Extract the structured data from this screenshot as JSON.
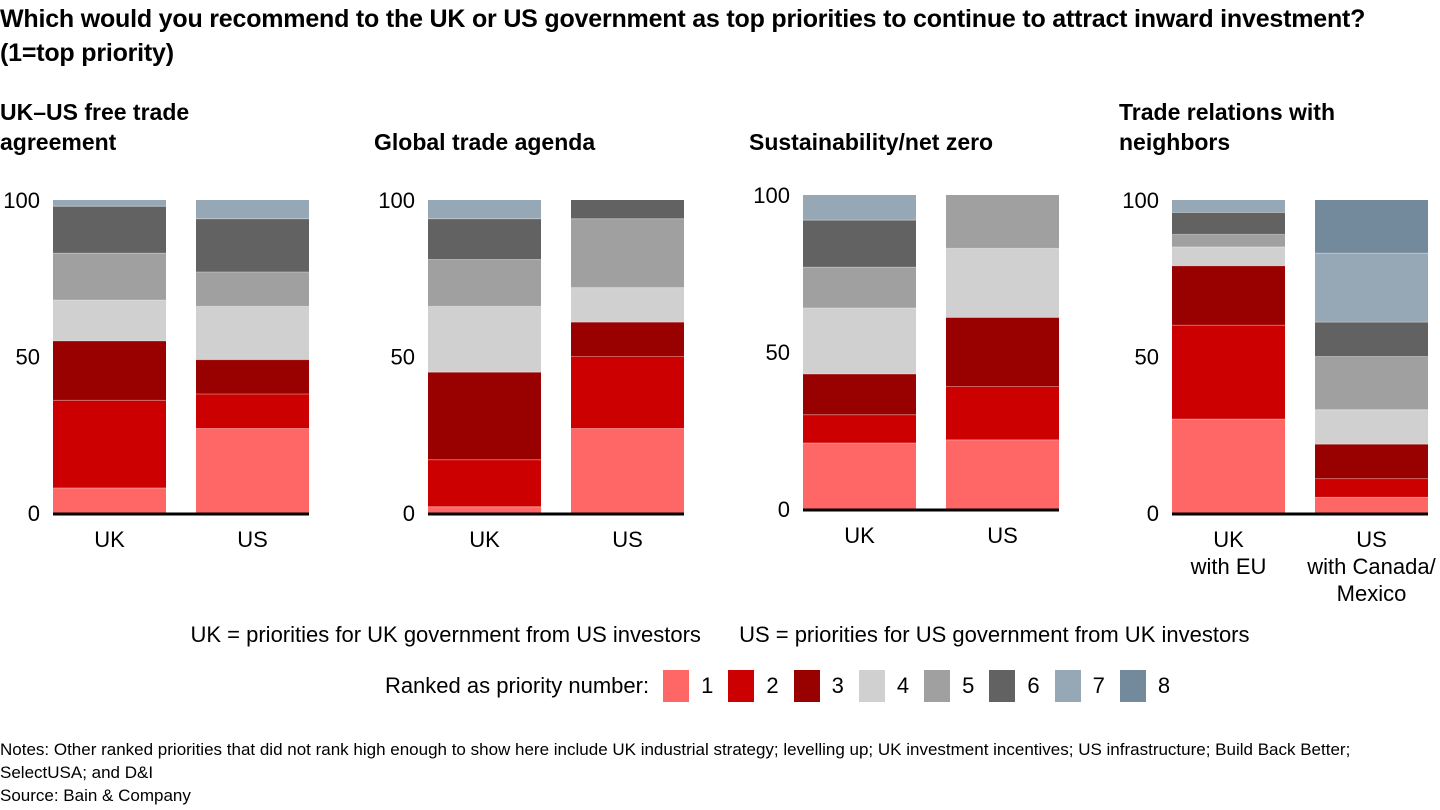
{
  "title": "Which would you recommend to the UK or US government as top priorities to continue to attract inward investment? (1=top priority)",
  "legend": {
    "definitions": [
      "UK = priorities for UK government from US investors",
      "US = priorities for US government from UK investors"
    ],
    "ranked_label": "Ranked as priority number:",
    "items": [
      {
        "label": "1",
        "color": "#FF6666"
      },
      {
        "label": "2",
        "color": "#CC0000"
      },
      {
        "label": "3",
        "color": "#990000"
      },
      {
        "label": "4",
        "color": "#D0D0D0"
      },
      {
        "label": "5",
        "color": "#A0A0A0"
      },
      {
        "label": "6",
        "color": "#626262"
      },
      {
        "label": "7",
        "color": "#96A8B6"
      },
      {
        "label": "8",
        "color": "#738A9D"
      }
    ]
  },
  "notes": "Notes: Other ranked priorities that did not rank high enough to show here include UK industrial strategy; levelling up; UK investment incentives; US infrastructure; Build Back Better; SelectUSA; and D&I",
  "source": "Source: Bain & Company",
  "chart_data": [
    {
      "type": "bar",
      "stacked": true,
      "title": "UK–US free trade agreement",
      "title_lines": [
        "UK–US free trade",
        "agreement"
      ],
      "categories": [
        [
          "UK"
        ],
        [
          "US"
        ]
      ],
      "ylim": [
        0,
        100
      ],
      "yticks": [
        0,
        50,
        100
      ],
      "series": [
        {
          "name": "1",
          "values": [
            8,
            27
          ]
        },
        {
          "name": "2",
          "values": [
            28,
            11
          ]
        },
        {
          "name": "3",
          "values": [
            19,
            11
          ]
        },
        {
          "name": "4",
          "values": [
            13,
            17
          ]
        },
        {
          "name": "5",
          "values": [
            15,
            11
          ]
        },
        {
          "name": "6",
          "values": [
            15,
            17
          ]
        },
        {
          "name": "7",
          "values": [
            2,
            6
          ]
        },
        {
          "name": "8",
          "values": [
            0,
            0
          ]
        }
      ]
    },
    {
      "type": "bar",
      "stacked": true,
      "title": "Global trade agenda",
      "title_lines": [
        "",
        "Global trade agenda"
      ],
      "categories": [
        [
          "UK"
        ],
        [
          "US"
        ]
      ],
      "ylim": [
        0,
        100
      ],
      "yticks": [
        0,
        50,
        100
      ],
      "series": [
        {
          "name": "1",
          "values": [
            2,
            27
          ]
        },
        {
          "name": "2",
          "values": [
            15,
            23
          ]
        },
        {
          "name": "3",
          "values": [
            28,
            11
          ]
        },
        {
          "name": "4",
          "values": [
            21,
            11
          ]
        },
        {
          "name": "5",
          "values": [
            15,
            22
          ]
        },
        {
          "name": "6",
          "values": [
            13,
            6
          ]
        },
        {
          "name": "7",
          "values": [
            6,
            0
          ]
        },
        {
          "name": "8",
          "values": [
            0,
            0
          ]
        }
      ]
    },
    {
      "type": "bar",
      "stacked": true,
      "title": "Sustainability/net zero",
      "title_lines": [
        "",
        "Sustainability/net zero"
      ],
      "categories": [
        [
          "UK"
        ],
        [
          "US"
        ]
      ],
      "ylim": [
        0,
        100
      ],
      "yticks": [
        0,
        50,
        100
      ],
      "series": [
        {
          "name": "1",
          "values": [
            21,
            22
          ]
        },
        {
          "name": "2",
          "values": [
            9,
            17
          ]
        },
        {
          "name": "3",
          "values": [
            13,
            22
          ]
        },
        {
          "name": "4",
          "values": [
            21,
            22
          ]
        },
        {
          "name": "5",
          "values": [
            13,
            17
          ]
        },
        {
          "name": "6",
          "values": [
            15,
            0
          ]
        },
        {
          "name": "7",
          "values": [
            8,
            0
          ]
        },
        {
          "name": "8",
          "values": [
            0,
            0
          ]
        }
      ]
    },
    {
      "type": "bar",
      "stacked": true,
      "title": "Trade relations with neighbors",
      "title_lines": [
        "Trade relations with",
        "neighbors"
      ],
      "categories": [
        [
          "UK",
          "with EU"
        ],
        [
          "US",
          "with Canada/",
          "Mexico"
        ]
      ],
      "ylim": [
        0,
        100
      ],
      "yticks": [
        0,
        50,
        100
      ],
      "series": [
        {
          "name": "1",
          "values": [
            30,
            5
          ]
        },
        {
          "name": "2",
          "values": [
            30,
            6
          ]
        },
        {
          "name": "3",
          "values": [
            19,
            11
          ]
        },
        {
          "name": "4",
          "values": [
            6,
            11
          ]
        },
        {
          "name": "5",
          "values": [
            4,
            17
          ]
        },
        {
          "name": "6",
          "values": [
            7,
            11
          ]
        },
        {
          "name": "7",
          "values": [
            4,
            22
          ]
        },
        {
          "name": "8",
          "values": [
            0,
            17
          ]
        }
      ]
    }
  ]
}
